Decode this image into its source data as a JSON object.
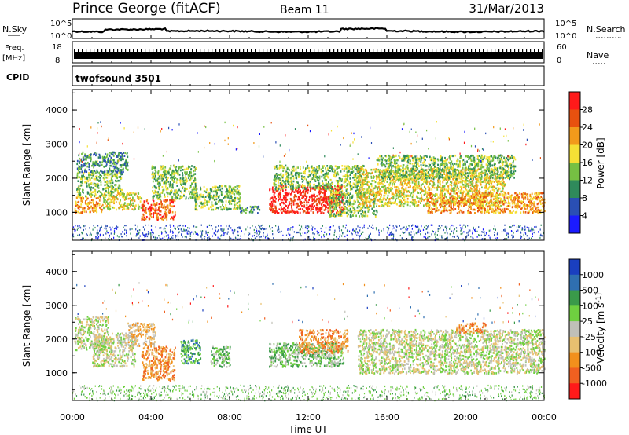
{
  "header": {
    "station": "Prince George (fitACF)",
    "beam": "Beam 11",
    "date": "31/Mar/2013"
  },
  "strip_labels": {
    "nsky": "N.Sky",
    "freq_line1": "Freq.",
    "freq_line2": "[MHz]",
    "cpid": "CPID",
    "nsearch": "N.Search",
    "nave": "Nave",
    "cpid_value": "twofsound 3501"
  },
  "strip_ticks": {
    "nsky_top": "10^5",
    "nsky_bottom": "10^0",
    "freq_top": "18",
    "freq_bottom": "8",
    "nave_top": "60",
    "nave_bottom": "0",
    "nsearch_top": "10^5",
    "nsearch_bottom": "10^0"
  },
  "chart_data": [
    {
      "type": "heatmap",
      "panel": "power",
      "ylabel": "Slant Range [km]",
      "yticks": [
        "1000",
        "2000",
        "3000",
        "4000"
      ],
      "ylim": [
        180,
        4600
      ],
      "xlim": [
        0,
        24
      ],
      "colorbar": {
        "label": "Power [dB]",
        "ticks": [
          "4",
          "8",
          "12",
          "16",
          "20",
          "24",
          "28"
        ],
        "colors": [
          "#1b1bff",
          "#2a4fb4",
          "#2f8a5b",
          "#76c043",
          "#f5e035",
          "#f29a1b",
          "#e8510f",
          "#ff1a1a"
        ]
      },
      "regions": [
        {
          "x0": 0.1,
          "x1": 1.5,
          "y0": 1000,
          "y1": 1500,
          "level": 5
        },
        {
          "x0": 0.2,
          "x1": 2.5,
          "y0": 1500,
          "y1": 2200,
          "level": 3
        },
        {
          "x0": 0.2,
          "x1": 2.8,
          "y0": 2200,
          "y1": 2800,
          "level": 2
        },
        {
          "x0": 1.5,
          "x1": 3.5,
          "y0": 1100,
          "y1": 1600,
          "level": 4
        },
        {
          "x0": 3.5,
          "x1": 5.2,
          "y0": 800,
          "y1": 1400,
          "level": 6
        },
        {
          "x0": 4.0,
          "x1": 6.3,
          "y0": 1400,
          "y1": 2400,
          "level": 3
        },
        {
          "x0": 6.2,
          "x1": 8.5,
          "y0": 1100,
          "y1": 1800,
          "level": 3
        },
        {
          "x0": 8.5,
          "x1": 9.5,
          "y0": 1000,
          "y1": 1200,
          "level": 2
        },
        {
          "x0": 10.0,
          "x1": 13.8,
          "y0": 1000,
          "y1": 1800,
          "level": 7
        },
        {
          "x0": 10.2,
          "x1": 14.8,
          "y0": 1700,
          "y1": 2400,
          "level": 3
        },
        {
          "x0": 13.0,
          "x1": 15.5,
          "y0": 900,
          "y1": 1700,
          "level": 3
        },
        {
          "x0": 14.5,
          "x1": 22.0,
          "y0": 1200,
          "y1": 2300,
          "level": 4
        },
        {
          "x0": 15.5,
          "x1": 22.5,
          "y0": 2000,
          "y1": 2700,
          "level": 3
        },
        {
          "x0": 18.0,
          "x1": 24.0,
          "y0": 1000,
          "y1": 1600,
          "level": 5
        }
      ],
      "ground_band": {
        "y0": 200,
        "y1": 650,
        "level": 1
      }
    },
    {
      "type": "heatmap",
      "panel": "velocity",
      "ylabel": "Slant Range [km]",
      "yticks": [
        "1000",
        "2000",
        "3000",
        "4000"
      ],
      "ylim": [
        180,
        4600
      ],
      "xlim": [
        0,
        24
      ],
      "xlabel": "Time UT",
      "xticks": [
        "00:00",
        "04:00",
        "08:00",
        "12:00",
        "16:00",
        "20:00",
        "00:00"
      ],
      "colorbar": {
        "label": "Velocity [m s^-1]",
        "ticks": [
          "1000",
          "500",
          "100",
          "25",
          "-25",
          "-100",
          "-500",
          "-1000"
        ],
        "colors": [
          "#1a3fbf",
          "#2f6fb0",
          "#3a9a4a",
          "#6fd040",
          "#c0c0b8",
          "#e8c070",
          "#f2901c",
          "#f06020",
          "#ff1a1a"
        ]
      },
      "regions": [
        {
          "x0": 0.1,
          "x1": 1.8,
          "y0": 1700,
          "y1": 2700,
          "level": 4
        },
        {
          "x0": 1.0,
          "x1": 3.2,
          "y0": 1200,
          "y1": 2200,
          "level": 4
        },
        {
          "x0": 2.8,
          "x1": 4.2,
          "y0": 1800,
          "y1": 2500,
          "level": 5
        },
        {
          "x0": 3.5,
          "x1": 5.2,
          "y0": 800,
          "y1": 1800,
          "level": 6
        },
        {
          "x0": 5.5,
          "x1": 6.5,
          "y0": 1300,
          "y1": 2000,
          "level": 2
        },
        {
          "x0": 7.0,
          "x1": 8.0,
          "y0": 1200,
          "y1": 1800,
          "level": 3
        },
        {
          "x0": 10.0,
          "x1": 13.8,
          "y0": 1200,
          "y1": 1900,
          "level": 3
        },
        {
          "x0": 11.5,
          "x1": 14.0,
          "y0": 1600,
          "y1": 2300,
          "level": 6
        },
        {
          "x0": 14.5,
          "x1": 24.0,
          "y0": 1000,
          "y1": 2300,
          "level": 4
        },
        {
          "x0": 19.5,
          "x1": 21.0,
          "y0": 2200,
          "y1": 2500,
          "level": 6
        }
      ],
      "ground_band": {
        "y0": 200,
        "y1": 650,
        "level": 3
      }
    }
  ]
}
